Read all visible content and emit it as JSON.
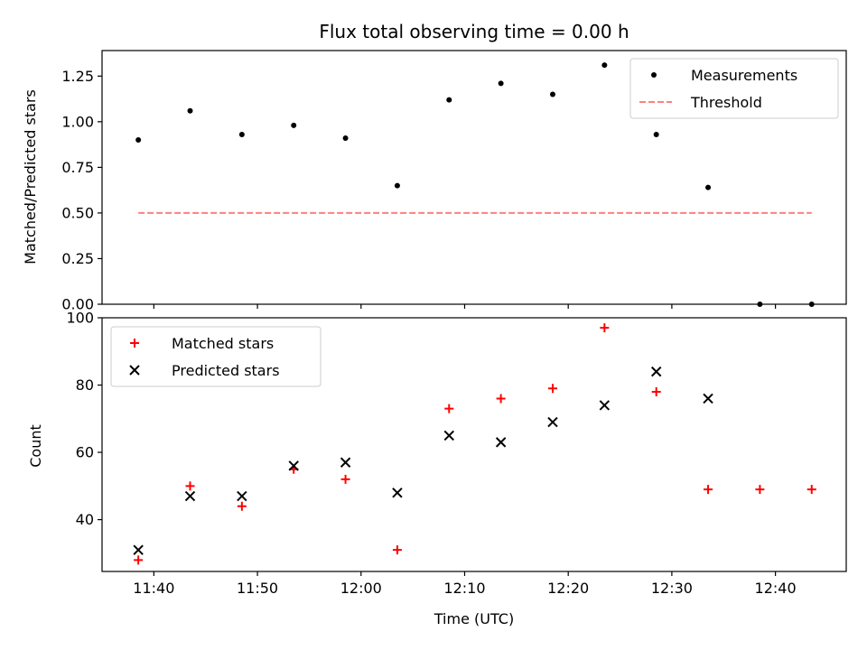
{
  "chart_data": [
    {
      "type": "scatter",
      "title": "Flux total observing time = 0.00 h",
      "ylabel": "Matched/Predicted stars",
      "xlabel": "",
      "ylim": [
        0,
        1.39
      ],
      "y_ticks": [
        0.0,
        0.25,
        0.5,
        0.75,
        1.0,
        1.25
      ],
      "y_tick_labels": [
        "0.00",
        "0.25",
        "0.50",
        "0.75",
        "1.00",
        "1.25"
      ],
      "legend_position": "top-right",
      "series": [
        {
          "name": "Measurements",
          "marker": "dot",
          "color": "#000000",
          "x": [
            "11:38:30",
            "11:43:30",
            "11:48:30",
            "11:53:30",
            "11:58:30",
            "12:03:30",
            "12:08:30",
            "12:13:30",
            "12:18:30",
            "12:23:30",
            "12:28:30",
            "12:33:30",
            "12:38:30",
            "12:43:30"
          ],
          "y": [
            0.9,
            1.06,
            0.93,
            0.98,
            0.91,
            0.65,
            1.12,
            1.21,
            1.15,
            1.31,
            0.93,
            0.64,
            0.0,
            0.0
          ]
        },
        {
          "name": "Threshold",
          "marker": "dashed-line",
          "color": "#ff7f7f",
          "x": [
            "11:38:30",
            "12:43:30"
          ],
          "y": [
            0.5,
            0.5
          ]
        }
      ]
    },
    {
      "type": "scatter",
      "title": "",
      "ylabel": "Count",
      "xlabel": "Time (UTC)",
      "ylim": [
        24.6,
        100
      ],
      "y_ticks": [
        40,
        60,
        80,
        100
      ],
      "y_tick_labels": [
        "40",
        "60",
        "80",
        "100"
      ],
      "x_ticks": [
        "11:40",
        "11:50",
        "12:00",
        "12:10",
        "12:20",
        "12:30",
        "12:40"
      ],
      "legend_position": "top-left",
      "series": [
        {
          "name": "Matched stars",
          "marker": "plus",
          "color": "#ff0000",
          "x": [
            "11:38:30",
            "11:43:30",
            "11:48:30",
            "11:53:30",
            "11:58:30",
            "12:03:30",
            "12:08:30",
            "12:13:30",
            "12:18:30",
            "12:23:30",
            "12:28:30",
            "12:33:30",
            "12:38:30",
            "12:43:30"
          ],
          "y": [
            28,
            50,
            44,
            55,
            52,
            31,
            73,
            76,
            79,
            97,
            78,
            49,
            49,
            49
          ]
        },
        {
          "name": "Predicted stars",
          "marker": "x",
          "color": "#000000",
          "x": [
            "11:38:30",
            "11:43:30",
            "11:48:30",
            "11:53:30",
            "11:58:30",
            "12:03:30",
            "12:08:30",
            "12:13:30",
            "12:18:30",
            "12:23:30",
            "12:28:30",
            "12:33:30"
          ],
          "y": [
            31,
            47,
            47,
            56,
            57,
            48,
            65,
            63,
            69,
            74,
            84,
            76
          ]
        }
      ]
    }
  ],
  "shared_x_range": [
    "11:35:00",
    "12:46:50"
  ]
}
